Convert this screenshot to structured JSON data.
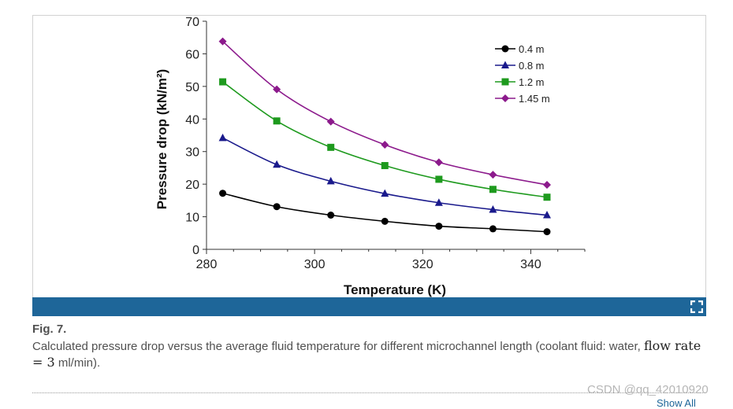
{
  "figure": {
    "label": "Fig. 7.",
    "caption_pre": "Calculated pressure drop versus the average fluid temperature for different microchannel length (coolant fluid: water, ",
    "caption_math": "flow rate = 3",
    "caption_post": " ml/min).",
    "expand_icon": "expand-icon",
    "bar_color": "#1e6699"
  },
  "watermark": "CSDN @qq_42010920",
  "show_all": "Show All",
  "chart_data": {
    "type": "line",
    "title": "",
    "xlabel": "Temperature (K)",
    "ylabel": "Pressure drop (kN/m²)",
    "xlim": [
      280,
      350
    ],
    "ylim": [
      0,
      70
    ],
    "xticks": [
      280,
      300,
      320,
      340
    ],
    "yticks": [
      0,
      10,
      20,
      30,
      40,
      50,
      60,
      70
    ],
    "grid": false,
    "legend_position": "top-right",
    "x": [
      283,
      293,
      303,
      313,
      323,
      333,
      343
    ],
    "series": [
      {
        "name": "0.4 m",
        "marker": "circle",
        "color": "#000000",
        "values": [
          17.2,
          13.1,
          10.5,
          8.6,
          7.1,
          6.3,
          5.4
        ]
      },
      {
        "name": "0.8 m",
        "marker": "triangle",
        "color": "#1a1a8c",
        "values": [
          34.2,
          26.0,
          20.9,
          17.1,
          14.3,
          12.2,
          10.5
        ]
      },
      {
        "name": "1.2 m",
        "marker": "square",
        "color": "#1e9a1e",
        "values": [
          51.4,
          39.4,
          31.3,
          25.7,
          21.5,
          18.4,
          16.0
        ]
      },
      {
        "name": "1.45 m",
        "marker": "diamond",
        "color": "#8c1a8c",
        "values": [
          63.8,
          49.1,
          39.2,
          32.1,
          26.7,
          22.9,
          19.8
        ]
      }
    ]
  }
}
